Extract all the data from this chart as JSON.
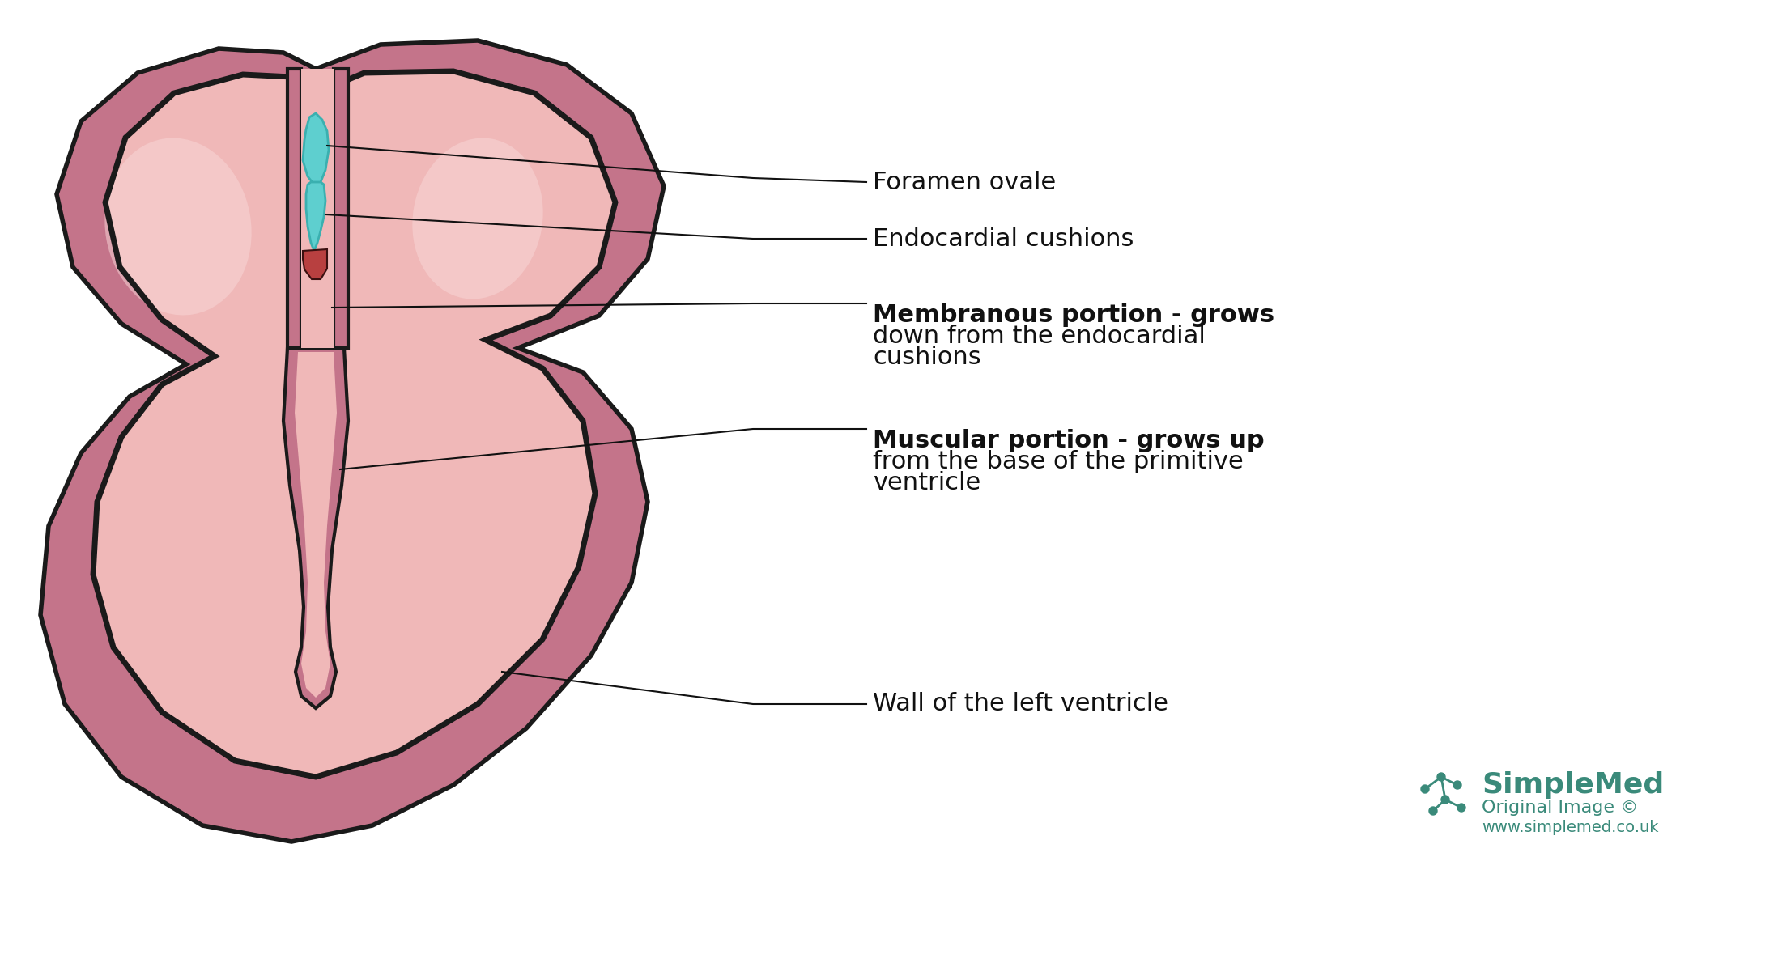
{
  "bg_color": "#ffffff",
  "outer_wall_color": "#c4748a",
  "outer_wall_edge": "#1a1a1a",
  "inner_fill_color": "#f0b8b8",
  "inner_fill_light": "#f5cece",
  "septum_pink": "#c4748a",
  "septum_dark": "#a05070",
  "teal_color": "#5ecfcf",
  "teal_dark": "#3ab0b0",
  "red_node_color": "#b84040",
  "label_color": "#111111",
  "simplemed_color": "#3a8a7a",
  "annotation_line_color": "#111111",
  "labels": {
    "foramen_ovale": "Foramen ovale",
    "endocardial": "Endocardial cushions",
    "membranous": "Membranous portion - grows\ndown from the endocardial\ncushions",
    "muscular": "Muscular portion - grows up\nfrom the base of the primitive\nventricle",
    "wall": "Wall of the left ventricle"
  },
  "simplemed_text": "SimpleMed",
  "original_text": "Original Image ©",
  "url_text": "www.simplemed.co.uk"
}
